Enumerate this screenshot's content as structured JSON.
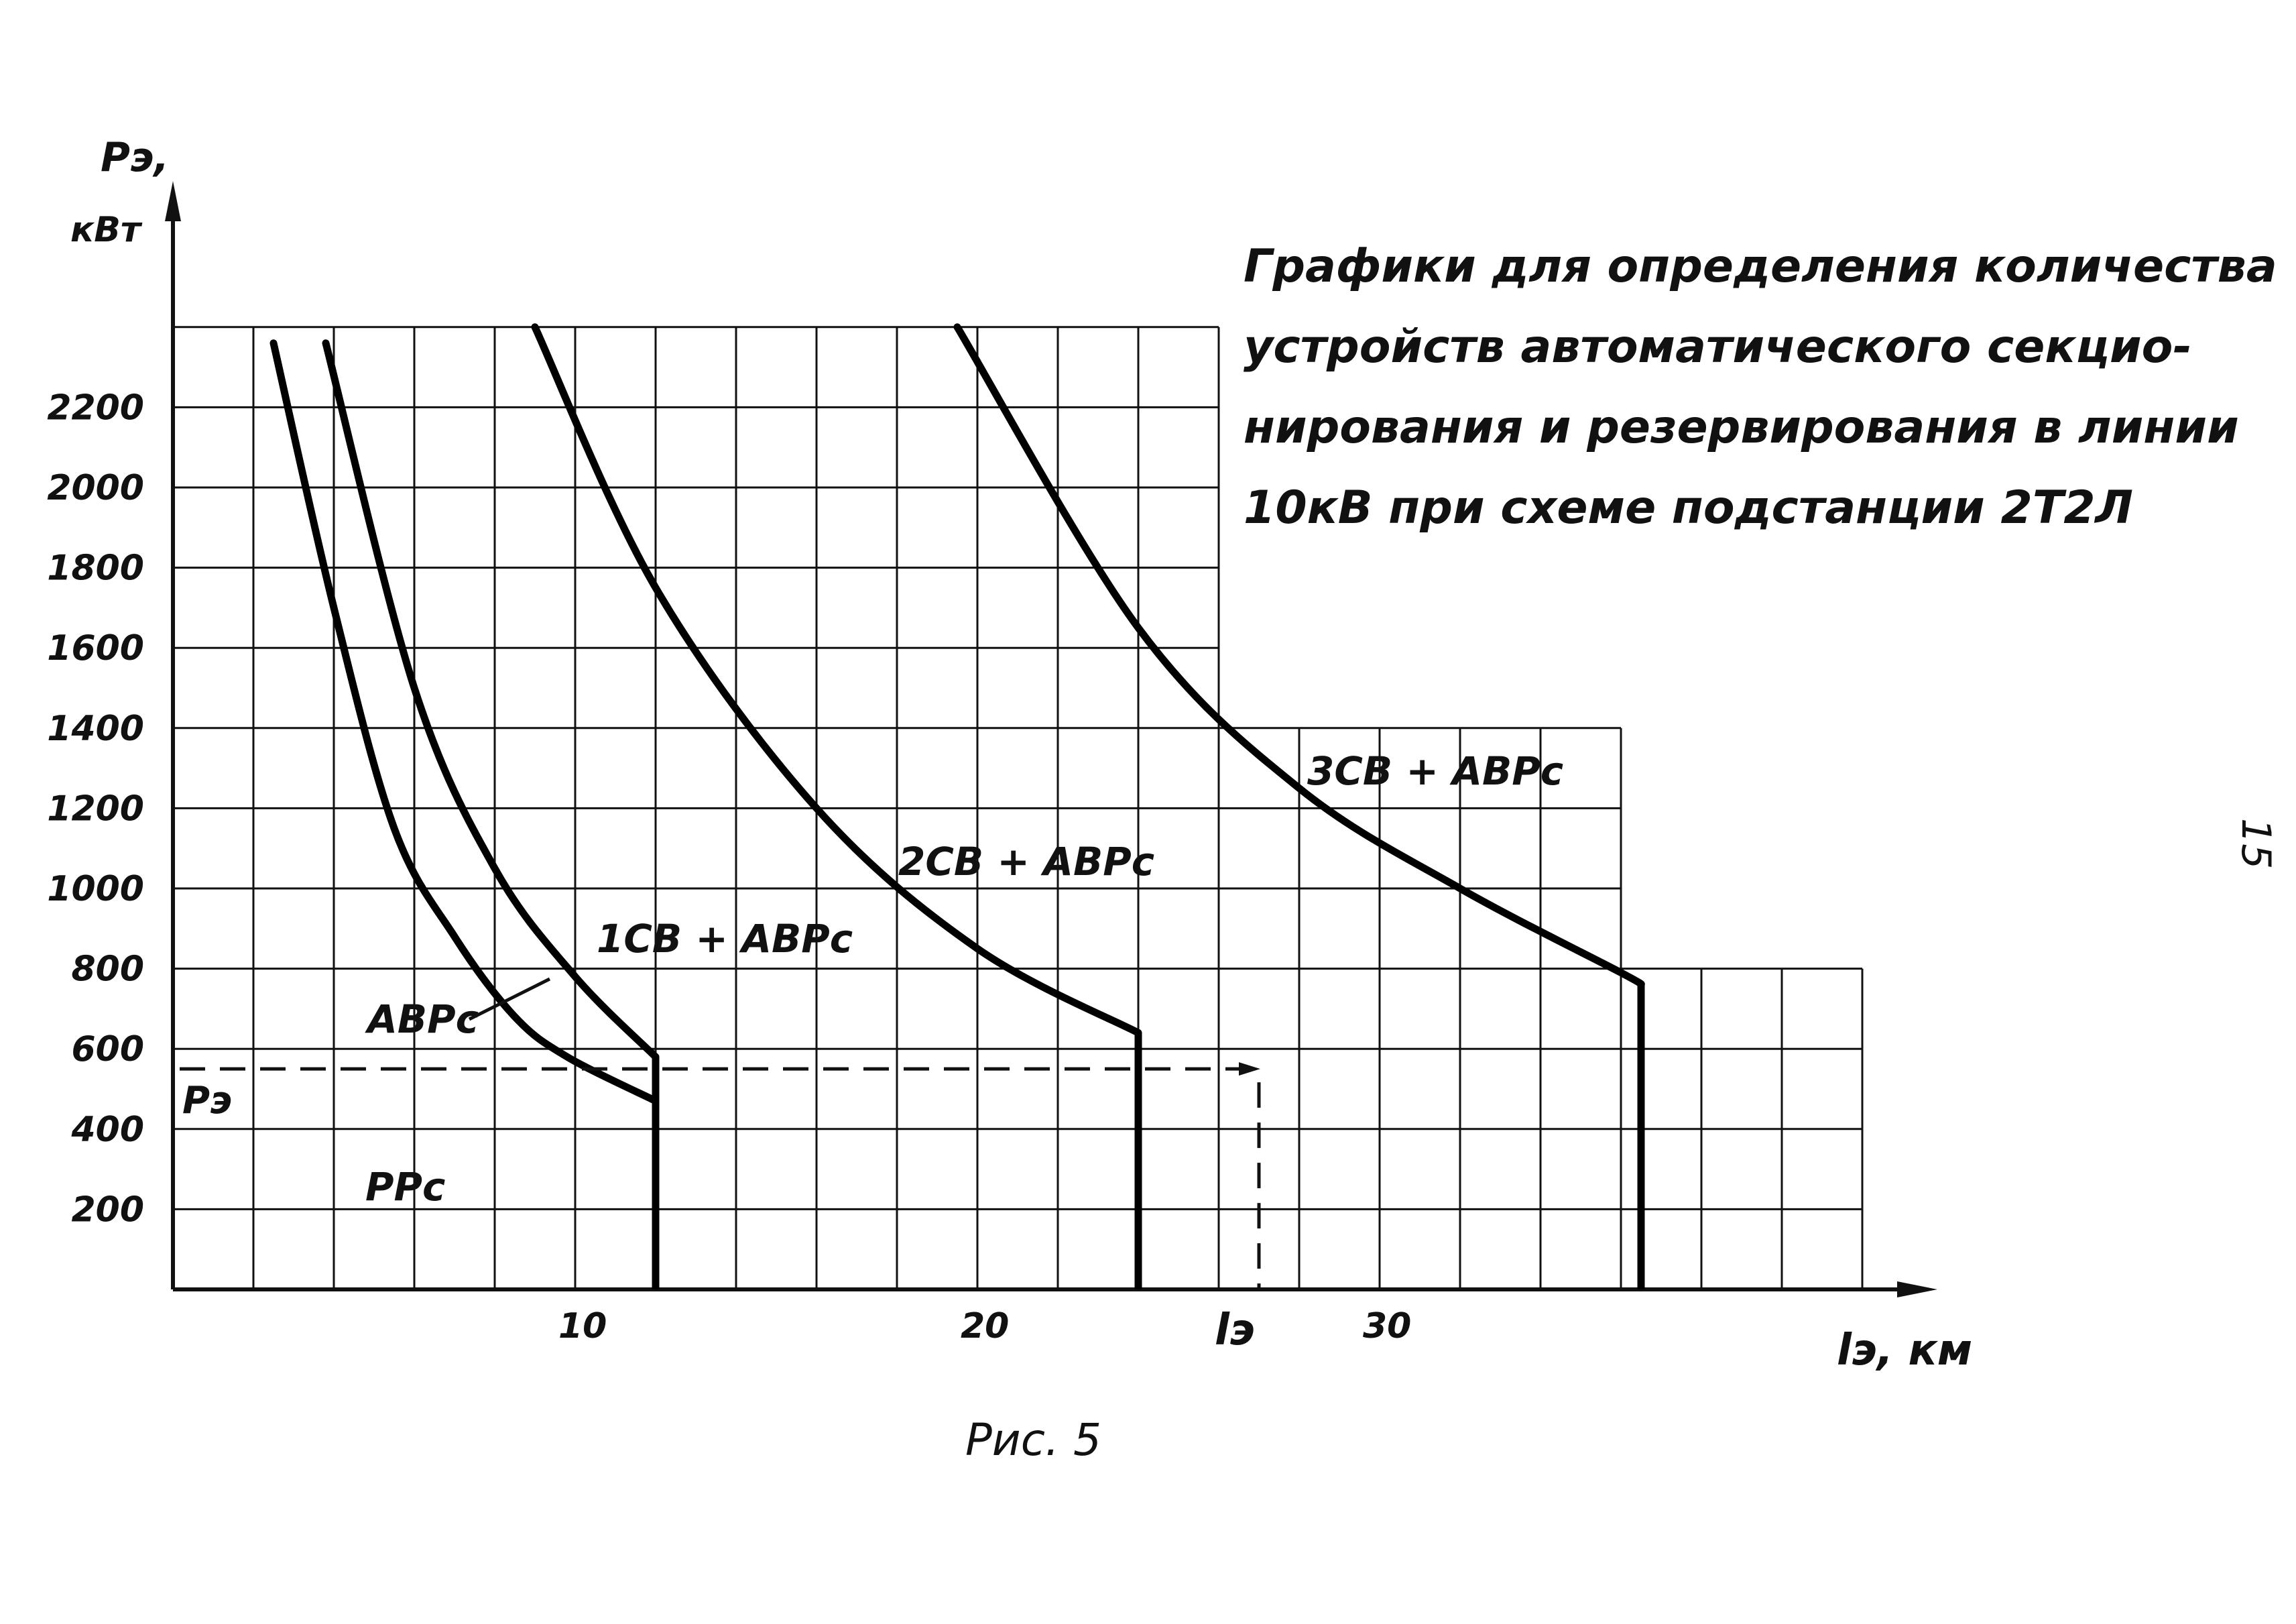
{
  "chart_data": {
    "type": "line",
    "title_lines": [
      "Графики для определения количества",
      "устройств автоматического секцио-",
      "нирования и резервирования в линии",
      "10кВ при схеме подстанции 2Т2Л"
    ],
    "ylabel": "Pэ,",
    "ylabel_unit": "кВт",
    "xlabel": "lэ, км",
    "y_ticks": [
      {
        "v": 200,
        "t": "200"
      },
      {
        "v": 400,
        "t": "400"
      },
      {
        "v": 600,
        "t": "600"
      },
      {
        "v": 800,
        "t": "800"
      },
      {
        "v": 1000,
        "t": "1000"
      },
      {
        "v": 1200,
        "t": "1200"
      },
      {
        "v": 1400,
        "t": "1400"
      },
      {
        "v": 1600,
        "t": "1600"
      },
      {
        "v": 1800,
        "t": "1800"
      },
      {
        "v": 2000,
        "t": "2000"
      },
      {
        "v": 2200,
        "t": "2200"
      }
    ],
    "x_ticks": [
      {
        "v": 10,
        "t": "10"
      },
      {
        "v": 20,
        "t": "20"
      },
      {
        "v": 30,
        "t": "30"
      }
    ],
    "xlim": [
      0,
      43
    ],
    "ylim": [
      0,
      2400
    ],
    "series": [
      {
        "name": "АВРс",
        "points": [
          [
            2.5,
            2360
          ],
          [
            4,
            1700
          ],
          [
            5.5,
            1150
          ],
          [
            7,
            880
          ],
          [
            8.5,
            680
          ],
          [
            9.8,
            580
          ],
          [
            12,
            470
          ]
        ]
      },
      {
        "name": "1СВ + АВРс",
        "points": [
          [
            3.8,
            2360
          ],
          [
            6,
            1500
          ],
          [
            8,
            1050
          ],
          [
            10,
            780
          ],
          [
            12,
            580
          ]
        ]
      },
      {
        "name": "2СВ + АВРс",
        "points": [
          [
            9,
            2400
          ],
          [
            12,
            1750
          ],
          [
            16,
            1200
          ],
          [
            20,
            850
          ],
          [
            24,
            640
          ]
        ]
      },
      {
        "name": "3СВ + АВРс",
        "points": [
          [
            19.5,
            2400
          ],
          [
            24,
            1650
          ],
          [
            28,
            1250
          ],
          [
            32,
            1000
          ],
          [
            36,
            790
          ],
          [
            36.5,
            760
          ]
        ]
      }
    ],
    "boundaries": [
      {
        "x": 12,
        "y_top": 580
      },
      {
        "x": 24,
        "y_top": 640
      },
      {
        "x": 36.5,
        "y_top": 760
      }
    ],
    "example": {
      "P_label": "Pэ",
      "l_label": "lэ",
      "P": 550,
      "l": 27
    },
    "region_label": "РРс",
    "figure_caption": "Рис. 5",
    "page_number": "15"
  }
}
